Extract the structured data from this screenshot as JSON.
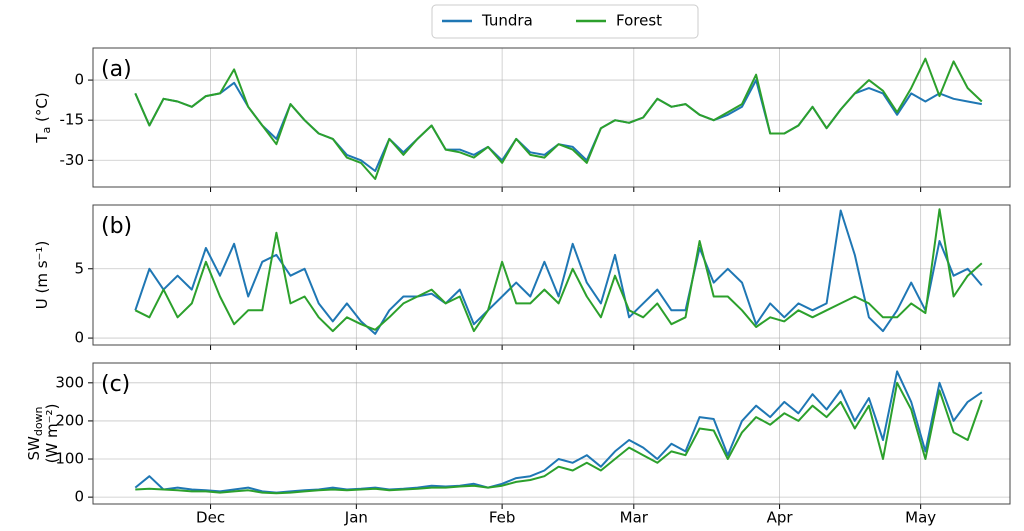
{
  "chart_data": [
    {
      "type": "line",
      "panel_label": "(a)",
      "ylabel": {
        "text": "T",
        "sub": "a",
        "unit": " (°C)"
      },
      "xlim": [
        -9,
        186
      ],
      "ylim": [
        -40,
        12
      ],
      "yticks": [
        -30,
        -15,
        0
      ],
      "grid": true,
      "x": [
        0,
        3,
        6,
        9,
        12,
        15,
        18,
        21,
        24,
        27,
        30,
        33,
        36,
        39,
        42,
        45,
        48,
        51,
        54,
        57,
        60,
        63,
        66,
        69,
        72,
        75,
        78,
        81,
        84,
        87,
        90,
        93,
        96,
        99,
        102,
        105,
        108,
        111,
        114,
        117,
        120,
        123,
        126,
        129,
        132,
        135,
        138,
        141,
        144,
        147,
        150,
        153,
        156,
        159,
        162,
        165,
        168,
        171,
        174,
        177,
        180
      ],
      "series": [
        {
          "name": "Tundra",
          "color": "#1f77b4",
          "values": [
            -5,
            -17,
            -7,
            -8,
            -10,
            -6,
            -5,
            -1,
            -10,
            -17,
            -22,
            -9,
            -15,
            -20,
            -22,
            -28,
            -30,
            -34,
            -22,
            -27,
            -22,
            -17,
            -26,
            -26,
            -28,
            -25,
            -30,
            -22,
            -27,
            -28,
            -24,
            -25,
            -30,
            -18,
            -15,
            -16,
            -14,
            -7,
            -10,
            -9,
            -13,
            -15,
            -13,
            -10,
            0,
            -20,
            -20,
            -17,
            -10,
            -18,
            -11,
            -5,
            -3,
            -5,
            -13,
            -5,
            -8,
            -5,
            -7,
            -8,
            -9
          ]
        },
        {
          "name": "Forest",
          "color": "#2ca02c",
          "values": [
            -5,
            -17,
            -7,
            -8,
            -10,
            -6,
            -5,
            4,
            -10,
            -17,
            -24,
            -9,
            -15,
            -20,
            -22,
            -29,
            -31,
            -37,
            -22,
            -28,
            -22,
            -17,
            -26,
            -27,
            -29,
            -25,
            -31,
            -22,
            -28,
            -29,
            -24,
            -26,
            -31,
            -18,
            -15,
            -16,
            -14,
            -7,
            -10,
            -9,
            -13,
            -15,
            -12,
            -9,
            2,
            -20,
            -20,
            -17,
            -10,
            -18,
            -11,
            -5,
            0,
            -4,
            -12,
            -3,
            8,
            -6,
            7,
            -3,
            -8
          ]
        }
      ]
    },
    {
      "type": "line",
      "panel_label": "(b)",
      "ylabel": {
        "text": "U (m s⁻¹)"
      },
      "xlim": [
        -9,
        186
      ],
      "ylim": [
        -0.5,
        9.6
      ],
      "yticks": [
        0,
        5
      ],
      "grid": true,
      "x": [
        0,
        3,
        6,
        9,
        12,
        15,
        18,
        21,
        24,
        27,
        30,
        33,
        36,
        39,
        42,
        45,
        48,
        51,
        54,
        57,
        60,
        63,
        66,
        69,
        72,
        75,
        78,
        81,
        84,
        87,
        90,
        93,
        96,
        99,
        102,
        105,
        108,
        111,
        114,
        117,
        120,
        123,
        126,
        129,
        132,
        135,
        138,
        141,
        144,
        147,
        150,
        153,
        156,
        159,
        162,
        165,
        168,
        171,
        174,
        177,
        180
      ],
      "series": [
        {
          "color": "#1f77b4",
          "values": [
            2,
            5,
            3.5,
            4.5,
            3.5,
            6.5,
            4.5,
            6.8,
            3,
            5.5,
            6,
            4.5,
            5,
            2.5,
            1.2,
            2.5,
            1.2,
            0.3,
            2,
            3,
            3,
            3.2,
            2.5,
            3.5,
            1,
            2,
            3,
            4,
            3,
            5.5,
            3,
            6.8,
            4,
            2.5,
            6,
            1.5,
            2.5,
            3.5,
            2,
            2,
            6.5,
            4,
            5,
            4,
            1,
            2.5,
            1.5,
            2.5,
            2,
            2.5,
            9.2,
            6,
            1.5,
            0.5,
            2,
            4,
            2,
            7,
            4.5,
            5,
            3.8
          ]
        },
        {
          "color": "#2ca02c",
          "values": [
            2,
            1.5,
            3.5,
            1.5,
            2.5,
            5.5,
            3,
            1,
            2,
            2,
            7.6,
            2.5,
            3,
            1.5,
            0.5,
            1.5,
            1,
            0.6,
            1.5,
            2.5,
            3,
            3.5,
            2.5,
            3,
            0.5,
            2,
            5.5,
            2.5,
            2.5,
            3.5,
            2.5,
            5,
            3,
            1.5,
            4.5,
            2,
            1.5,
            2.5,
            1,
            1.5,
            7,
            3,
            3,
            2,
            0.8,
            1.5,
            1.2,
            2,
            1.5,
            2,
            2.5,
            3,
            2.5,
            1.5,
            1.5,
            2.5,
            1.8,
            9.3,
            3,
            4.5,
            5.4
          ]
        }
      ]
    },
    {
      "type": "line",
      "panel_label": "(c)",
      "ylabel": {
        "text": "SW",
        "sub": "down",
        "unit": "(W m⁻²)"
      },
      "xlim": [
        -9,
        186
      ],
      "ylim": [
        -18,
        352
      ],
      "yticks": [
        0,
        100,
        200,
        300
      ],
      "grid": true,
      "xticks": [
        {
          "value": 16,
          "label": "Dec"
        },
        {
          "value": 47,
          "label": "Jan"
        },
        {
          "value": 78,
          "label": "Feb"
        },
        {
          "value": 106,
          "label": "Mar"
        },
        {
          "value": 137,
          "label": "Apr"
        },
        {
          "value": 167,
          "label": "May"
        }
      ],
      "x": [
        0,
        3,
        6,
        9,
        12,
        15,
        18,
        21,
        24,
        27,
        30,
        33,
        36,
        39,
        42,
        45,
        48,
        51,
        54,
        57,
        60,
        63,
        66,
        69,
        72,
        75,
        78,
        81,
        84,
        87,
        90,
        93,
        96,
        99,
        102,
        105,
        108,
        111,
        114,
        117,
        120,
        123,
        126,
        129,
        132,
        135,
        138,
        141,
        144,
        147,
        150,
        153,
        156,
        159,
        162,
        165,
        168,
        171,
        174,
        177,
        180
      ],
      "series": [
        {
          "color": "#1f77b4",
          "values": [
            25,
            55,
            20,
            25,
            20,
            18,
            15,
            20,
            25,
            15,
            12,
            15,
            18,
            20,
            25,
            20,
            22,
            25,
            20,
            22,
            25,
            30,
            28,
            30,
            35,
            25,
            35,
            50,
            55,
            70,
            100,
            90,
            110,
            80,
            120,
            150,
            130,
            100,
            140,
            120,
            210,
            205,
            110,
            200,
            240,
            210,
            250,
            220,
            270,
            230,
            280,
            200,
            260,
            150,
            330,
            250,
            120,
            300,
            200,
            250,
            275
          ]
        },
        {
          "color": "#2ca02c",
          "values": [
            20,
            22,
            20,
            18,
            15,
            15,
            12,
            15,
            18,
            12,
            10,
            12,
            15,
            18,
            20,
            18,
            20,
            22,
            18,
            20,
            22,
            25,
            25,
            28,
            30,
            25,
            30,
            40,
            45,
            55,
            80,
            70,
            90,
            70,
            100,
            130,
            110,
            90,
            120,
            110,
            180,
            175,
            100,
            170,
            210,
            190,
            220,
            200,
            240,
            210,
            250,
            180,
            240,
            100,
            300,
            230,
            100,
            280,
            170,
            150,
            255
          ]
        }
      ]
    }
  ]
}
